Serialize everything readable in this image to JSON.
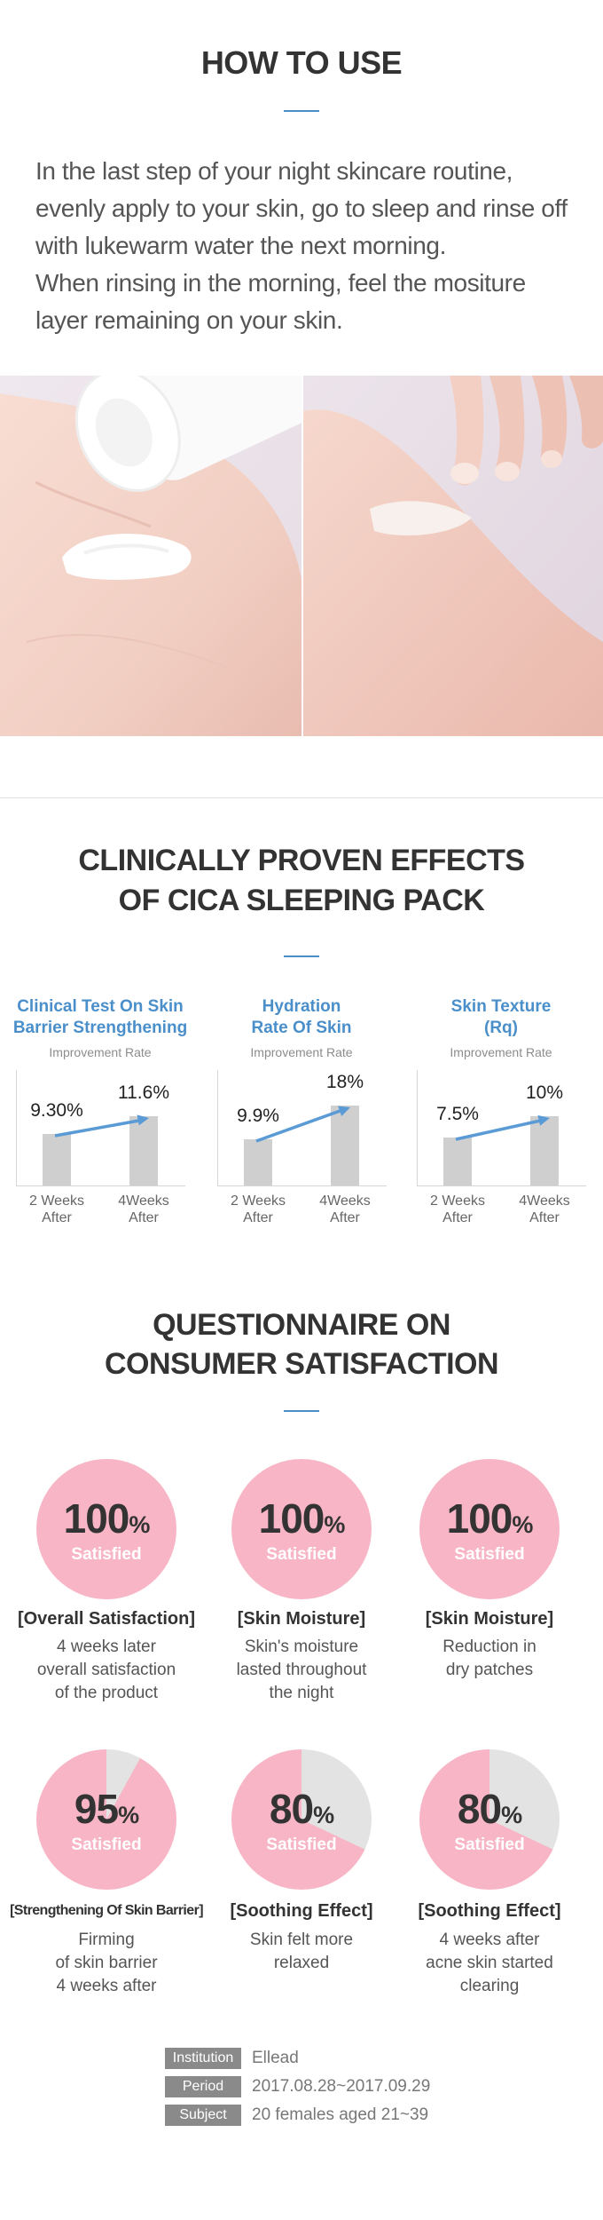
{
  "how_to_use": {
    "title": "HOW TO USE",
    "lines": [
      "In the last step of your night skincare routine,",
      "evenly apply to your skin, go to sleep and rinse off",
      "with lukewarm water the next morning.",
      "When rinsing in the morning, feel the mositure",
      "layer remaining on your skin."
    ]
  },
  "clinical": {
    "title_line1": "CLINICALLY PROVEN EFFECTS",
    "title_line2": "OF CICA SLEEPING PACK"
  },
  "chart_data": [
    {
      "type": "bar",
      "title": [
        "Clinical Test On Skin",
        "Barrier Strengthening"
      ],
      "subtitle": "Improvement Rate",
      "categories": [
        "2 Weeks After",
        "4Weeks After"
      ],
      "category_lines": [
        [
          "2 Weeks",
          "After"
        ],
        [
          "4Weeks",
          "After"
        ]
      ],
      "values": [
        9.3,
        11.6
      ],
      "value_labels": [
        "9.30%",
        "11.6%"
      ],
      "arrow": true
    },
    {
      "type": "bar",
      "title": [
        "Hydration",
        "Rate Of Skin"
      ],
      "subtitle": "Improvement Rate",
      "categories": [
        "2 Weeks After",
        "4Weeks After"
      ],
      "category_lines": [
        [
          "2 Weeks",
          "After"
        ],
        [
          "4Weeks",
          "After"
        ]
      ],
      "values": [
        9.9,
        18
      ],
      "value_labels": [
        "9.9%",
        "18%"
      ],
      "arrow": true
    },
    {
      "type": "bar",
      "title": [
        "Skin Texture",
        "(Rq)"
      ],
      "subtitle": "Improvement Rate",
      "categories": [
        "2 Weeks After",
        "4Weeks After"
      ],
      "category_lines": [
        [
          "2 Weeks",
          "After"
        ],
        [
          "4Weeks",
          "After"
        ]
      ],
      "values": [
        7.5,
        10
      ],
      "value_labels": [
        "7.5%",
        "10%"
      ],
      "arrow": true
    }
  ],
  "questionnaire": {
    "title_line1": "QUESTIONNAIRE ON",
    "title_line2": "CONSUMER SATISFACTION",
    "satisfied_label": "Satisfied",
    "items": [
      {
        "value": 100,
        "number": "100",
        "unit": "%",
        "title": "[Overall Satisfaction]",
        "desc": [
          "4 weeks later",
          "overall satisfaction",
          "of the product"
        ]
      },
      {
        "value": 100,
        "number": "100",
        "unit": "%",
        "title": "[Skin Moisture]",
        "desc": [
          "Skin's moisture",
          "lasted throughout",
          "the night"
        ]
      },
      {
        "value": 100,
        "number": "100",
        "unit": "%",
        "title": "[Skin Moisture]",
        "desc": [
          "Reduction in",
          "dry patches"
        ]
      },
      {
        "value": 95,
        "number": "95",
        "unit": "%",
        "title": "[Strengthening Of Skin Barrier]",
        "desc": [
          "Firming",
          "of skin barrier",
          "4 weeks after"
        ]
      },
      {
        "value": 80,
        "number": "80",
        "unit": "%",
        "title": "[Soothing Effect]",
        "desc": [
          "Skin felt more",
          "relaxed"
        ]
      },
      {
        "value": 80,
        "number": "80",
        "unit": "%",
        "title": "[Soothing Effect]",
        "desc": [
          "4 weeks after",
          "acne skin started",
          "clearing"
        ]
      }
    ]
  },
  "study_info": [
    {
      "label": "Institution",
      "value": "Ellead"
    },
    {
      "label": "Period",
      "value": "2017.08.28~2017.09.29"
    },
    {
      "label": "Subject",
      "value": "20 females aged 21~39"
    }
  ],
  "colors": {
    "accent_blue": "#4a8fca",
    "pink": "#f7b5c6",
    "pie_remainder": "#e3e3e3",
    "bar_gray": "#cfcfcf",
    "arrow_blue": "#5a9bd5"
  }
}
